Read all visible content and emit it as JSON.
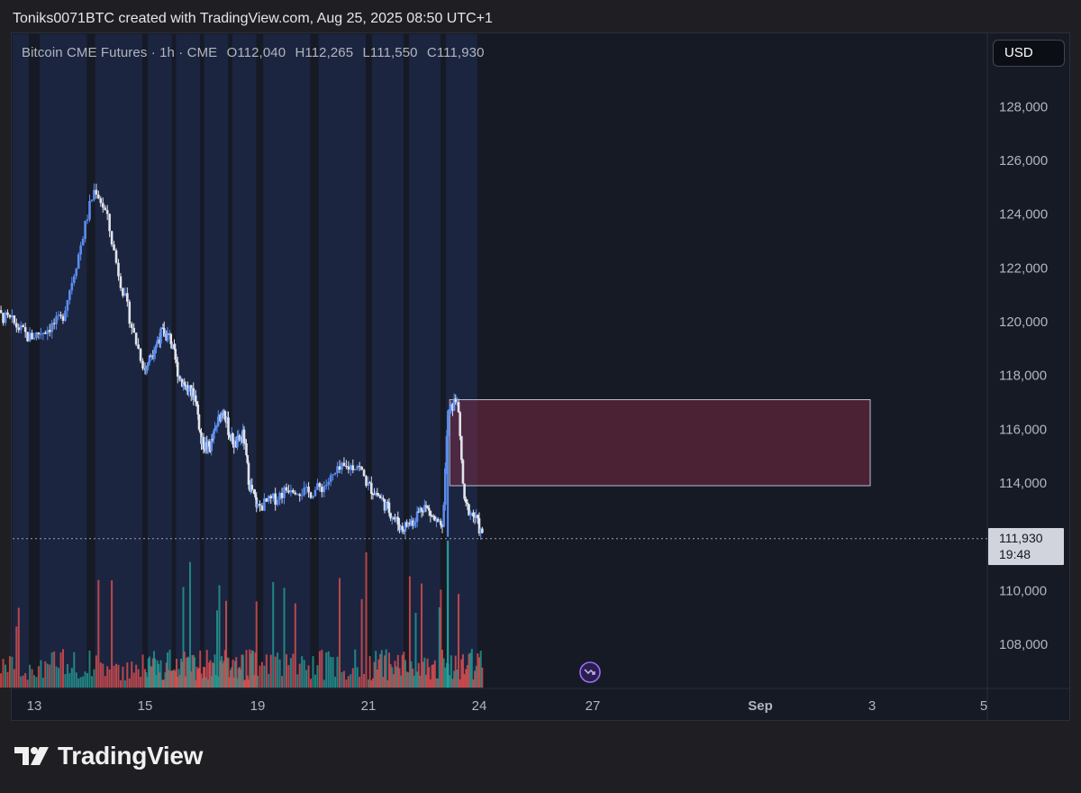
{
  "header": {
    "attribution": "Toniks0071BTC created with TradingView.com, Aug 25, 2025 08:50 UTC+1"
  },
  "legend": {
    "symbol": "Bitcoin CME Futures",
    "interval": "1h",
    "exchange": "CME",
    "open": "O112,040",
    "high": "H112,265",
    "low": "L111,550",
    "close": "C111,930"
  },
  "toolbar": {
    "currency": "USD"
  },
  "last_price": {
    "price": "111,930",
    "countdown": "19:48"
  },
  "brand": {
    "name": "TradingView"
  },
  "colors": {
    "up": "#5b8def",
    "down": "#e0e3eb",
    "volume_up": "#26a69a",
    "volume_down": "#ef5350",
    "zone_fill": "#8b2c46",
    "session": "#1e2a4a"
  },
  "chart_data": {
    "type": "candlestick",
    "y_axis": {
      "ticks": [
        128000,
        126000,
        124000,
        122000,
        120000,
        118000,
        116000,
        114000,
        110000,
        108000
      ],
      "tick_labels": [
        "128,000",
        "126,000",
        "124,000",
        "122,000",
        "120,000",
        "118,000",
        "116,000",
        "114,000",
        "110,000",
        "108,000"
      ]
    },
    "x_axis": {
      "ticks": [
        "13",
        "15",
        "19",
        "21",
        "24",
        "27",
        "Sep",
        "3",
        "5"
      ]
    },
    "close_series": [
      [
        12,
        119200
      ],
      [
        12.3,
        120300
      ],
      [
        12.6,
        120000
      ],
      [
        12.9,
        119400
      ],
      [
        13.2,
        119700
      ],
      [
        13.5,
        120100
      ],
      [
        13.8,
        122500
      ],
      [
        14.0,
        124300
      ],
      [
        14.1,
        125000
      ],
      [
        14.3,
        124000
      ],
      [
        14.5,
        122000
      ],
      [
        14.8,
        119500
      ],
      [
        15.0,
        118200
      ],
      [
        15.3,
        119000
      ],
      [
        15.6,
        119600
      ],
      [
        15.9,
        119400
      ],
      [
        16.2,
        118000
      ],
      [
        16.5,
        117500
      ],
      [
        16.8,
        117200
      ],
      [
        17.0,
        115500
      ],
      [
        17.3,
        115300
      ],
      [
        17.6,
        116300
      ],
      [
        17.8,
        116800
      ],
      [
        18.0,
        115800
      ],
      [
        18.2,
        115400
      ],
      [
        18.5,
        115800
      ],
      [
        18.7,
        114000
      ],
      [
        19.0,
        113100
      ],
      [
        19.3,
        113400
      ],
      [
        19.6,
        113900
      ],
      [
        19.9,
        113600
      ],
      [
        20.2,
        113900
      ],
      [
        20.5,
        114500
      ],
      [
        20.8,
        114700
      ],
      [
        21.0,
        113900
      ],
      [
        21.3,
        113500
      ],
      [
        21.6,
        112900
      ],
      [
        21.9,
        112300
      ],
      [
        22.2,
        112600
      ],
      [
        22.5,
        113200
      ],
      [
        22.7,
        112800
      ],
      [
        23.0,
        112200
      ],
      [
        23.15,
        116500
      ],
      [
        23.4,
        117200
      ],
      [
        23.6,
        113200
      ],
      [
        23.9,
        112700
      ],
      [
        24.1,
        111930
      ]
    ],
    "supply_zone": {
      "price_low": 113900,
      "price_high": 117100,
      "from": 23.2,
      "to": 33
    },
    "last_close": 111930
  }
}
